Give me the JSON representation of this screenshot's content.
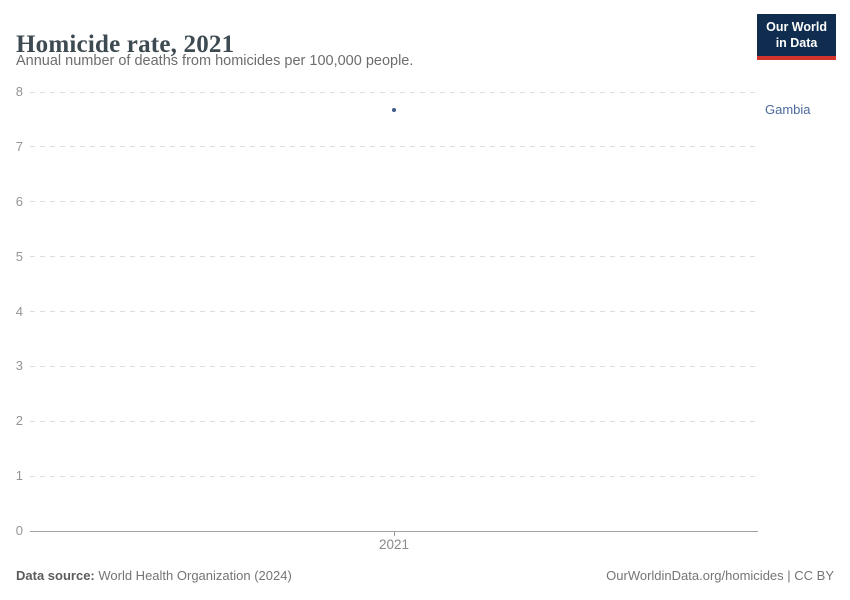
{
  "header": {
    "title": "Homicide rate, 2021",
    "subtitle": "Annual number of deaths from homicides per 100,000 people.",
    "logo": {
      "line1": "Our World",
      "line2": "in Data"
    }
  },
  "chart_data": {
    "type": "scatter",
    "title": "Homicide rate, 2021",
    "xlabel": "",
    "ylabel": "",
    "xlim": [
      2020.5,
      2021.5
    ],
    "ylim": [
      0,
      8
    ],
    "xticks": [
      2021
    ],
    "yticks": [
      0,
      1,
      2,
      3,
      4,
      5,
      6,
      7,
      8
    ],
    "grid": "horizontal-dashed",
    "legend_position": "entity-label-right",
    "series": [
      {
        "name": "Gambia",
        "x": [
          2021
        ],
        "y": [
          7.67
        ]
      }
    ]
  },
  "footer": {
    "source_label": "Data source:",
    "source_value": " World Health Organization (2024)",
    "credit": "OurWorldinData.org/homicides | CC BY"
  },
  "colors": {
    "point": "#3d5a86",
    "entity_label": "#4c6a9c",
    "logo_navy": "#102d50",
    "logo_red": "#d2342c",
    "gridline": "#dcdcdc",
    "axis_line": "#a3a3a3",
    "tick_text": "#8a8a8a"
  }
}
